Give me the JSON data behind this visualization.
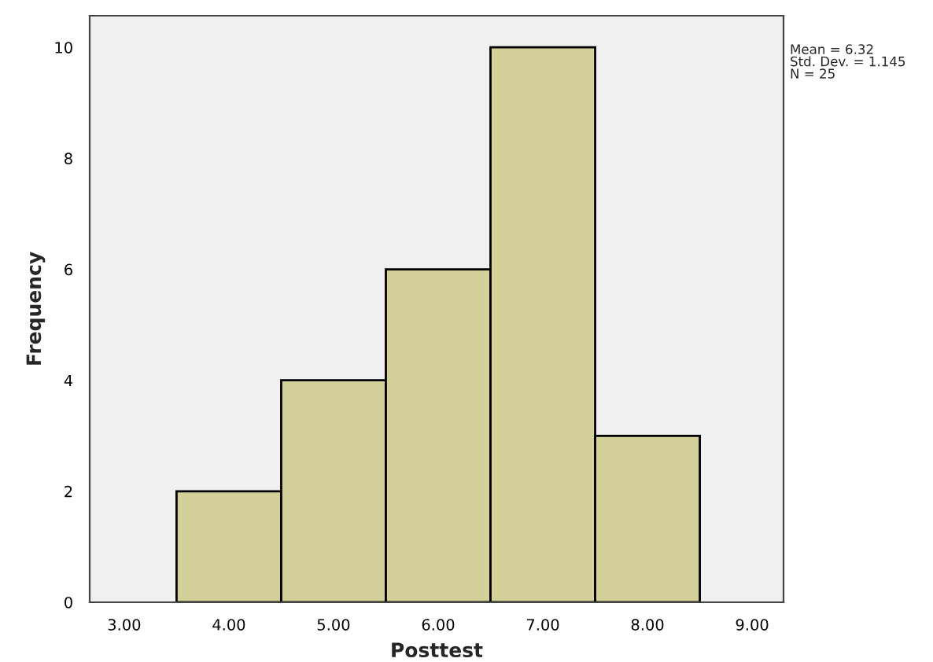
{
  "chart_data": {
    "type": "histogram",
    "xlabel": "Posttest",
    "ylabel": "Frequency",
    "bins": [
      3.5,
      4.5,
      5.5,
      6.5,
      7.5,
      8.5
    ],
    "values": [
      2,
      4,
      6,
      10,
      3
    ],
    "color": "#d4d09a",
    "xlim": [
      2.67,
      9.3
    ],
    "ylim": [
      0,
      10.57
    ],
    "xticks": [
      {
        "value": 3,
        "label": "3.00"
      },
      {
        "value": 4,
        "label": "4.00"
      },
      {
        "value": 5,
        "label": "5.00"
      },
      {
        "value": 6,
        "label": "6.00"
      },
      {
        "value": 7,
        "label": "7.00"
      },
      {
        "value": 8,
        "label": "8.00"
      },
      {
        "value": 9,
        "label": "9.00"
      }
    ],
    "yticks": [
      0,
      2,
      4,
      6,
      8,
      10
    ],
    "grid": false,
    "annotations": [
      "Mean = 6.32\nStd. Dev. = 1.145\nN = 25"
    ]
  }
}
